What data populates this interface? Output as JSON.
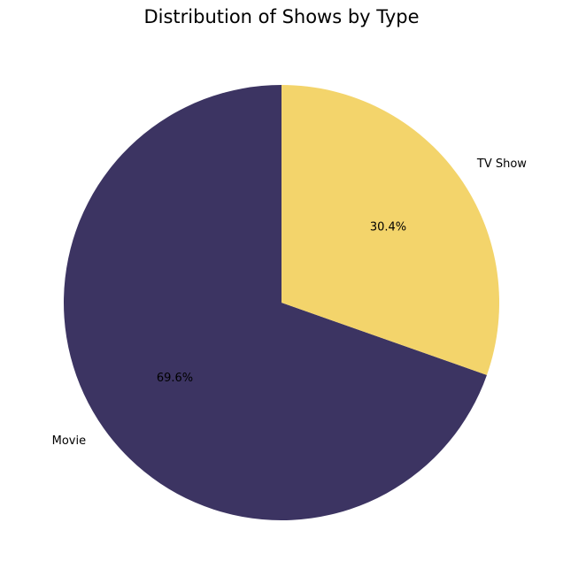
{
  "chart_data": {
    "type": "pie",
    "title": "Distribution of Shows by Type",
    "slices": [
      {
        "label": "Movie",
        "value": 69.6,
        "pct_label": "69.6%",
        "color": "#3c3462"
      },
      {
        "label": "TV Show",
        "value": 30.4,
        "pct_label": "30.4%",
        "color": "#f3d46b"
      }
    ],
    "start_angle_deg": 90,
    "direction": "counterclockwise",
    "legend": "none"
  }
}
